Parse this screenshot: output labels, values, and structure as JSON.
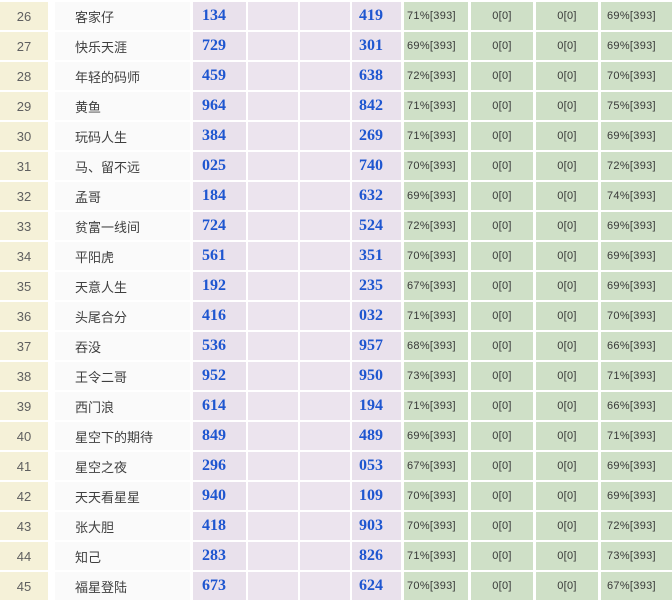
{
  "table": {
    "description_colors": {
      "rank_col_bg": "#f5f1d8",
      "name_col_bg": "#fafafa",
      "number_col_bg": "#e9e1ec",
      "stat_col_bg": "#cfe0c7",
      "number_text": "#1e56d0",
      "separator": "#ffffff"
    },
    "rows": [
      {
        "rank": "26",
        "name": "客家仔",
        "num1": "134",
        "num2": "419",
        "pct1": "71%[393]",
        "pct2": "0[0]",
        "pct3": "0[0]",
        "pct4": "69%[393]"
      },
      {
        "rank": "27",
        "name": "快乐天涯",
        "num1": "729",
        "num2": "301",
        "pct1": "69%[393]",
        "pct2": "0[0]",
        "pct3": "0[0]",
        "pct4": "69%[393]"
      },
      {
        "rank": "28",
        "name": "年轻的码师",
        "num1": "459",
        "num2": "638",
        "pct1": "72%[393]",
        "pct2": "0[0]",
        "pct3": "0[0]",
        "pct4": "70%[393]"
      },
      {
        "rank": "29",
        "name": "黄鱼",
        "num1": "964",
        "num2": "842",
        "pct1": "71%[393]",
        "pct2": "0[0]",
        "pct3": "0[0]",
        "pct4": "75%[393]"
      },
      {
        "rank": "30",
        "name": "玩码人生",
        "num1": "384",
        "num2": "269",
        "pct1": "71%[393]",
        "pct2": "0[0]",
        "pct3": "0[0]",
        "pct4": "69%[393]"
      },
      {
        "rank": "31",
        "name": "马、留不远",
        "num1": "025",
        "num2": "740",
        "pct1": "70%[393]",
        "pct2": "0[0]",
        "pct3": "0[0]",
        "pct4": "72%[393]"
      },
      {
        "rank": "32",
        "name": "孟哥",
        "num1": "184",
        "num2": "632",
        "pct1": "69%[393]",
        "pct2": "0[0]",
        "pct3": "0[0]",
        "pct4": "74%[393]"
      },
      {
        "rank": "33",
        "name": "贫富一线间",
        "num1": "724",
        "num2": "524",
        "pct1": "72%[393]",
        "pct2": "0[0]",
        "pct3": "0[0]",
        "pct4": "69%[393]"
      },
      {
        "rank": "34",
        "name": "平阳虎",
        "num1": "561",
        "num2": "351",
        "pct1": "70%[393]",
        "pct2": "0[0]",
        "pct3": "0[0]",
        "pct4": "69%[393]"
      },
      {
        "rank": "35",
        "name": "天意人生",
        "num1": "192",
        "num2": "235",
        "pct1": "67%[393]",
        "pct2": "0[0]",
        "pct3": "0[0]",
        "pct4": "69%[393]"
      },
      {
        "rank": "36",
        "name": "头尾合分",
        "num1": "416",
        "num2": "032",
        "pct1": "71%[393]",
        "pct2": "0[0]",
        "pct3": "0[0]",
        "pct4": "70%[393]"
      },
      {
        "rank": "37",
        "name": "吞没",
        "num1": "536",
        "num2": "957",
        "pct1": "68%[393]",
        "pct2": "0[0]",
        "pct3": "0[0]",
        "pct4": "66%[393]"
      },
      {
        "rank": "38",
        "name": "王令二哥",
        "num1": "952",
        "num2": "950",
        "pct1": "73%[393]",
        "pct2": "0[0]",
        "pct3": "0[0]",
        "pct4": "71%[393]"
      },
      {
        "rank": "39",
        "name": "西门浪",
        "num1": "614",
        "num2": "194",
        "pct1": "71%[393]",
        "pct2": "0[0]",
        "pct3": "0[0]",
        "pct4": "66%[393]"
      },
      {
        "rank": "40",
        "name": "星空下的期待",
        "num1": "849",
        "num2": "489",
        "pct1": "69%[393]",
        "pct2": "0[0]",
        "pct3": "0[0]",
        "pct4": "71%[393]"
      },
      {
        "rank": "41",
        "name": "星空之夜",
        "num1": "296",
        "num2": "053",
        "pct1": "67%[393]",
        "pct2": "0[0]",
        "pct3": "0[0]",
        "pct4": "69%[393]"
      },
      {
        "rank": "42",
        "name": "天天看星星",
        "num1": "940",
        "num2": "109",
        "pct1": "70%[393]",
        "pct2": "0[0]",
        "pct3": "0[0]",
        "pct4": "69%[393]"
      },
      {
        "rank": "43",
        "name": "张大胆",
        "num1": "418",
        "num2": "903",
        "pct1": "70%[393]",
        "pct2": "0[0]",
        "pct3": "0[0]",
        "pct4": "72%[393]"
      },
      {
        "rank": "44",
        "name": "知己",
        "num1": "283",
        "num2": "826",
        "pct1": "71%[393]",
        "pct2": "0[0]",
        "pct3": "0[0]",
        "pct4": "73%[393]"
      },
      {
        "rank": "45",
        "name": "福星登陆",
        "num1": "673",
        "num2": "624",
        "pct1": "70%[393]",
        "pct2": "0[0]",
        "pct3": "0[0]",
        "pct4": "67%[393]"
      }
    ]
  }
}
